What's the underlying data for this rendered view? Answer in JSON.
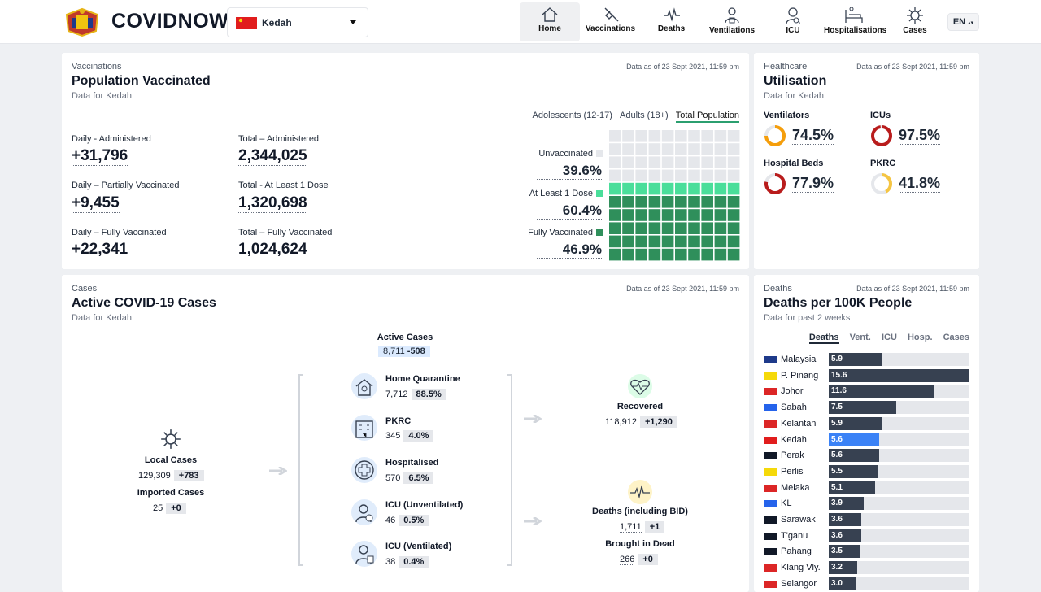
{
  "header": {
    "brand": "COVIDNOW",
    "state": "Kedah",
    "lang": "EN",
    "nav": [
      {
        "label": "Home",
        "icon": "home-icon",
        "active": true
      },
      {
        "label": "Vaccinations",
        "icon": "syringe-icon"
      },
      {
        "label": "Deaths",
        "icon": "heartbeat-icon"
      },
      {
        "label": "Ventilations",
        "icon": "ventilator-icon"
      },
      {
        "label": "ICU",
        "icon": "icu-icon"
      },
      {
        "label": "Hospitalisations",
        "icon": "hospital-bed-icon"
      },
      {
        "label": "Cases",
        "icon": "virus-icon"
      }
    ]
  },
  "vaccinations": {
    "section": "Vaccinations",
    "title": "Population Vaccinated",
    "subtitle": "Data for Kedah",
    "as_of": "Data as of 23 Sept 2021, 11:59 pm",
    "tabs": [
      "Adolescents (12-17)",
      "Adults (18+)",
      "Total Population"
    ],
    "metrics": [
      {
        "label": "Daily - Administered",
        "value": "+31,796"
      },
      {
        "label": "Total – Administered",
        "value": "2,344,025"
      },
      {
        "label": "Daily – Partially Vaccinated",
        "value": "+9,455"
      },
      {
        "label": "Total - At Least 1 Dose",
        "value": "1,320,698"
      },
      {
        "label": "Daily – Fully Vaccinated",
        "value": "+22,341"
      },
      {
        "label": "Total – Fully Vaccinated",
        "value": "1,024,624"
      }
    ],
    "legend": [
      {
        "label": "Unvaccinated",
        "value": "39.6%",
        "color": "#e5e7eb"
      },
      {
        "label": "At Least 1 Dose",
        "value": "60.4%",
        "color": "#4ade9a"
      },
      {
        "label": "Fully Vaccinated",
        "value": "46.9%",
        "color": "#2f8f5b"
      }
    ],
    "waffle": {
      "unvaccinated_rows": 4,
      "partial_rows": 1,
      "full_rows": 5,
      "total_rows": 10,
      "cols": 10
    }
  },
  "healthcare": {
    "section": "Healthcare",
    "title": "Utilisation",
    "subtitle": "Data for Kedah",
    "as_of": "Data as of 23 Sept 2021, 11:59 pm",
    "items": [
      {
        "label": "Ventilators",
        "value": "74.5%",
        "pct": 74.5,
        "color": "#f59e0b"
      },
      {
        "label": "ICUs",
        "value": "97.5%",
        "pct": 97.5,
        "color": "#b91c1c"
      },
      {
        "label": "Hospital Beds",
        "value": "77.9%",
        "pct": 77.9,
        "color": "#b91c1c"
      },
      {
        "label": "PKRC",
        "value": "41.8%",
        "pct": 41.8,
        "color": "#f5c542"
      }
    ]
  },
  "cases": {
    "section": "Cases",
    "title": "Active COVID-19 Cases",
    "subtitle": "Data for Kedah",
    "as_of": "Data as of 23 Sept 2021, 11:59 pm",
    "active": {
      "label": "Active Cases",
      "value": "8,711",
      "delta": "-508"
    },
    "local": {
      "label": "Local Cases",
      "value": "129,309",
      "delta": "+783"
    },
    "imported": {
      "label": "Imported Cases",
      "value": "25",
      "delta": "+0"
    },
    "states": [
      {
        "label": "Home Quarantine",
        "value": "7,712",
        "pct": "88.5%"
      },
      {
        "label": "PKRC",
        "value": "345",
        "pct": "4.0%"
      },
      {
        "label": "Hospitalised",
        "value": "570",
        "pct": "6.5%"
      },
      {
        "label": "ICU (Unventilated)",
        "value": "46",
        "pct": "0.5%"
      },
      {
        "label": "ICU (Ventilated)",
        "value": "38",
        "pct": "0.4%"
      }
    ],
    "recovered": {
      "label": "Recovered",
      "value": "118,912",
      "delta": "+1,290"
    },
    "deaths": {
      "label": "Deaths (including BID)",
      "value": "1,711",
      "delta": "+1"
    },
    "bid": {
      "label": "Brought in Dead",
      "value": "266",
      "delta": "+0"
    }
  },
  "deaths": {
    "section": "Deaths",
    "title": "Deaths per 100K People",
    "subtitle": "Data for past 2 weeks",
    "as_of": "Data as of 23 Sept 2021, 11:59 pm",
    "tabs": [
      "Deaths",
      "Vent.",
      "ICU",
      "Hosp.",
      "Cases"
    ],
    "max": 15.6,
    "rows": [
      {
        "name": "Malaysia",
        "value": 5.9
      },
      {
        "name": "P. Pinang",
        "value": 15.6
      },
      {
        "name": "Johor",
        "value": 11.6
      },
      {
        "name": "Sabah",
        "value": 7.5
      },
      {
        "name": "Kelantan",
        "value": 5.9
      },
      {
        "name": "Kedah",
        "value": 5.6,
        "highlight": true
      },
      {
        "name": "Perak",
        "value": 5.6
      },
      {
        "name": "Perlis",
        "value": 5.5
      },
      {
        "name": "Melaka",
        "value": 5.1
      },
      {
        "name": "KL",
        "value": 3.9
      },
      {
        "name": "Sarawak",
        "value": 3.6
      },
      {
        "name": "T'ganu",
        "value": 3.6
      },
      {
        "name": "Pahang",
        "value": 3.5
      },
      {
        "name": "Klang Vly.",
        "value": 3.2
      },
      {
        "name": "Selangor",
        "value": 3.0
      }
    ]
  }
}
